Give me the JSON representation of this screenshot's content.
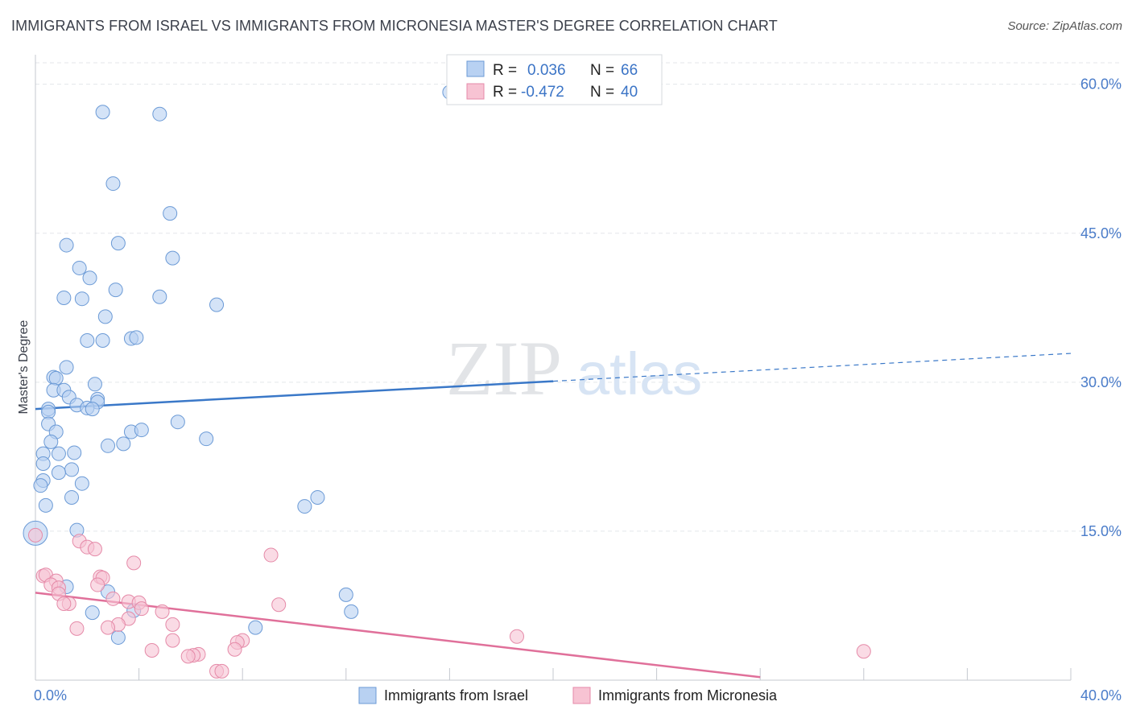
{
  "title": "IMMIGRANTS FROM ISRAEL VS IMMIGRANTS FROM MICRONESIA MASTER'S DEGREE CORRELATION CHART",
  "source": "Source: ZipAtlas.com",
  "watermark": {
    "zip": "ZIP",
    "atlas": "atlas"
  },
  "colors": {
    "israel_fill": "#b8d1f2",
    "israel_stroke": "#6b9ad6",
    "israel_line": "#3a78c8",
    "micronesia_fill": "#f7c3d3",
    "micronesia_stroke": "#e58aa8",
    "micronesia_line": "#e0709a",
    "grid": "#e3e6ea",
    "tick_text": "#4a7cc9"
  },
  "legend": {
    "israel": {
      "r_label": "R =",
      "r_value": "0.036",
      "n_label": "N =",
      "n_value": "66"
    },
    "micronesia": {
      "r_label": "R =",
      "r_value": "-0.472",
      "n_label": "N =",
      "n_value": "40"
    }
  },
  "chart_data": {
    "type": "scatter",
    "title": "IMMIGRANTS FROM ISRAEL VS IMMIGRANTS FROM MICRONESIA MASTER'S DEGREE CORRELATION CHART",
    "xlabel": "",
    "ylabel": "Master's Degree",
    "xlim": [
      0,
      40
    ],
    "ylim": [
      0,
      62
    ],
    "x_tick_labels": [
      "0.0%",
      "40.0%"
    ],
    "y_ticks": [
      15,
      30,
      45,
      60
    ],
    "y_tick_labels": [
      "15.0%",
      "30.0%",
      "45.0%",
      "60.0%"
    ],
    "grid": true,
    "legend_position": "top-center",
    "series": [
      {
        "name": "Immigrants from Israel",
        "r": 0.036,
        "n": 66,
        "trend": {
          "x0": 0,
          "y0": 27.3,
          "x1": 20,
          "y1": 30.1,
          "dashed_to_x": 40,
          "dashed_to_y": 32.9
        },
        "points": [
          [
            2.6,
            57.2
          ],
          [
            4.8,
            57.0
          ],
          [
            16.0,
            59.2
          ],
          [
            3.0,
            50.0
          ],
          [
            5.2,
            47.0
          ],
          [
            3.2,
            44.0
          ],
          [
            1.2,
            43.8
          ],
          [
            5.3,
            42.5
          ],
          [
            1.7,
            41.5
          ],
          [
            2.1,
            40.5
          ],
          [
            3.1,
            39.3
          ],
          [
            1.1,
            38.5
          ],
          [
            1.8,
            38.4
          ],
          [
            4.8,
            38.6
          ],
          [
            7.0,
            37.8
          ],
          [
            2.7,
            36.6
          ],
          [
            2.0,
            34.2
          ],
          [
            2.6,
            34.2
          ],
          [
            3.7,
            34.4
          ],
          [
            3.9,
            34.5
          ],
          [
            1.2,
            31.5
          ],
          [
            0.7,
            30.5
          ],
          [
            0.8,
            30.4
          ],
          [
            2.3,
            29.8
          ],
          [
            0.7,
            29.2
          ],
          [
            1.1,
            29.2
          ],
          [
            1.3,
            28.5
          ],
          [
            2.4,
            28.3
          ],
          [
            2.4,
            28.0
          ],
          [
            1.6,
            27.7
          ],
          [
            2.0,
            27.4
          ],
          [
            2.2,
            27.3
          ],
          [
            0.5,
            27.3
          ],
          [
            0.5,
            27.0
          ],
          [
            0.5,
            25.8
          ],
          [
            0.8,
            25.0
          ],
          [
            3.7,
            25.0
          ],
          [
            4.1,
            25.2
          ],
          [
            6.6,
            24.3
          ],
          [
            0.6,
            24.0
          ],
          [
            2.8,
            23.6
          ],
          [
            3.4,
            23.8
          ],
          [
            0.3,
            22.8
          ],
          [
            0.9,
            22.8
          ],
          [
            1.5,
            22.9
          ],
          [
            0.3,
            21.8
          ],
          [
            1.4,
            21.2
          ],
          [
            0.9,
            20.9
          ],
          [
            0.3,
            20.1
          ],
          [
            1.8,
            19.8
          ],
          [
            0.2,
            19.6
          ],
          [
            1.4,
            18.4
          ],
          [
            10.9,
            18.4
          ],
          [
            10.4,
            17.5
          ],
          [
            0.4,
            17.6
          ],
          [
            1.6,
            15.1
          ],
          [
            0.0,
            14.8
          ],
          [
            1.2,
            9.4
          ],
          [
            2.8,
            8.9
          ],
          [
            12.0,
            8.6
          ],
          [
            3.8,
            7.0
          ],
          [
            2.2,
            6.8
          ],
          [
            12.2,
            6.9
          ],
          [
            8.5,
            5.3
          ],
          [
            3.2,
            4.3
          ],
          [
            5.5,
            26.0
          ]
        ]
      },
      {
        "name": "Immigrants from Micronesia",
        "r": -0.472,
        "n": 40,
        "trend": {
          "x0": 0,
          "y0": 8.8,
          "x1": 28,
          "y1": 0.3
        },
        "points": [
          [
            0.0,
            14.6
          ],
          [
            1.7,
            14.0
          ],
          [
            2.0,
            13.4
          ],
          [
            2.3,
            13.2
          ],
          [
            9.1,
            12.6
          ],
          [
            3.8,
            11.8
          ],
          [
            0.3,
            10.5
          ],
          [
            0.4,
            10.6
          ],
          [
            2.5,
            10.4
          ],
          [
            2.6,
            10.3
          ],
          [
            0.8,
            10.0
          ],
          [
            0.6,
            9.6
          ],
          [
            2.4,
            9.6
          ],
          [
            0.9,
            9.3
          ],
          [
            0.9,
            8.7
          ],
          [
            3.0,
            8.2
          ],
          [
            1.3,
            7.7
          ],
          [
            3.6,
            7.9
          ],
          [
            4.0,
            7.8
          ],
          [
            1.1,
            7.7
          ],
          [
            9.4,
            7.6
          ],
          [
            4.1,
            7.2
          ],
          [
            4.9,
            6.9
          ],
          [
            3.6,
            6.2
          ],
          [
            3.2,
            5.6
          ],
          [
            5.3,
            5.6
          ],
          [
            2.8,
            5.3
          ],
          [
            1.6,
            5.2
          ],
          [
            18.6,
            4.4
          ],
          [
            5.3,
            4.0
          ],
          [
            8.0,
            4.0
          ],
          [
            7.8,
            3.8
          ],
          [
            4.5,
            3.0
          ],
          [
            7.7,
            3.1
          ],
          [
            6.3,
            2.6
          ],
          [
            6.1,
            2.5
          ],
          [
            5.9,
            2.4
          ],
          [
            32.0,
            2.9
          ],
          [
            7.0,
            0.9
          ],
          [
            7.2,
            0.9
          ]
        ]
      }
    ]
  },
  "bottom_legend": {
    "israel_label": "Immigrants from Israel",
    "micronesia_label": "Immigrants from Micronesia"
  }
}
